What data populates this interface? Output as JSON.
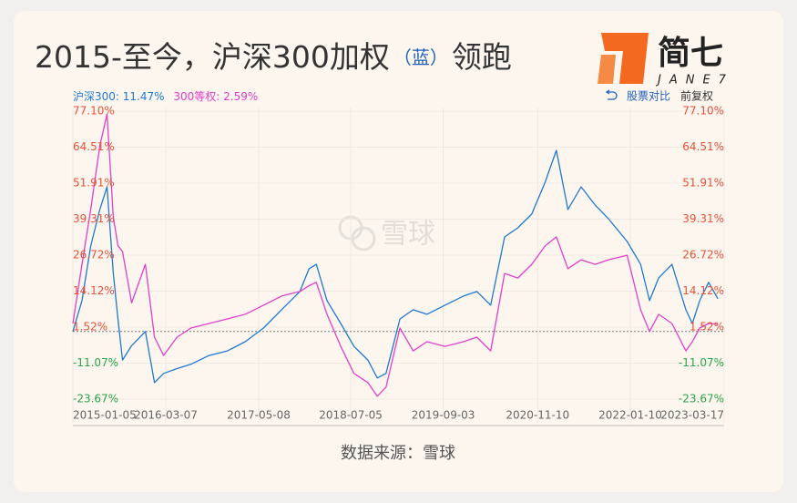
{
  "chart_data": {
    "type": "line",
    "title": "2015-至今，沪深300加权",
    "title_highlight": "（蓝）",
    "title_suffix": "领跑",
    "logo": "简七",
    "logo_sub": "JANE7",
    "watermark": "雪球",
    "source": "数据来源：雪球",
    "compare": "股票对比",
    "adjust": "前复权",
    "x": [
      "2015-01-05",
      "2015-02-16",
      "2015-03-28",
      "2015-05-09",
      "2015-06-11",
      "2015-07-10",
      "2015-07-31",
      "2015-08-21",
      "2015-10-02",
      "2015-12-04",
      "2016-01-15",
      "2016-02-26",
      "2016-04-28",
      "2016-06-30",
      "2016-09-22",
      "2016-12-15",
      "2017-03-07",
      "2017-05-30",
      "2017-08-21",
      "2017-11-13",
      "2017-12-25",
      "2018-01-28",
      "2018-03-18",
      "2018-05-20",
      "2018-07-20",
      "2018-09-22",
      "2018-11-04",
      "2018-12-14",
      "2019-02-16",
      "2019-04-18",
      "2019-06-20",
      "2019-09-11",
      "2019-12-05",
      "2020-02-05",
      "2020-04-08",
      "2020-06-11",
      "2020-08-11",
      "2020-10-14",
      "2020-12-14",
      "2021-02-04",
      "2021-03-29",
      "2021-05-29",
      "2021-08-01",
      "2021-10-01",
      "2021-12-26",
      "2022-02-26",
      "2022-04-08",
      "2022-05-20",
      "2022-07-20",
      "2022-09-22",
      "2022-10-22",
      "2022-11-25",
      "2023-01-05",
      "2023-02-16"
    ],
    "series": [
      {
        "name": "沪深300",
        "color": "#1f78d1",
        "legend_value": {
          "value": 11.47,
          "label": "11.47%"
        },
        "values": [
          0,
          10.8,
          29.9,
          42.7,
          50.6,
          20.3,
          4.4,
          -10,
          -5,
          0,
          -17.9,
          -14.7,
          -13,
          -11.5,
          -8.4,
          -6.8,
          -3.6,
          1.2,
          7.6,
          14,
          21.9,
          23.5,
          10.8,
          2.8,
          -5.2,
          -10,
          -16.3,
          -14.7,
          4.4,
          7.6,
          6,
          9.2,
          12.4,
          14,
          9.2,
          33.1,
          36.3,
          41.1,
          52.2,
          63.4,
          42.7,
          50.6,
          44.3,
          39.5,
          31.5,
          23.5,
          10.8,
          18.7,
          23.5,
          7.6,
          2.8,
          10.8,
          17.2,
          11.47
        ]
      },
      {
        "name": "300等权",
        "color": "#e040c8",
        "legend_value": {
          "value": 2.59,
          "label": "2.59%"
        },
        "values": [
          2.8,
          23.5,
          42.7,
          65,
          76.1,
          40,
          30,
          28,
          10,
          23.5,
          -2,
          -8.4,
          -2,
          1.2,
          2.8,
          4.4,
          6,
          9.2,
          12.4,
          14,
          16,
          17.2,
          6,
          -5.2,
          -14.7,
          -17.9,
          -22.7,
          -19.5,
          1.2,
          -6.8,
          -3.6,
          -5.2,
          -3.6,
          -2,
          -6.8,
          20.3,
          18.7,
          23.5,
          29.9,
          33.1,
          22,
          25.1,
          23.5,
          25.1,
          26.7,
          7.6,
          0,
          6,
          2.8,
          -6.8,
          -3.6,
          1.2,
          2.8,
          2.59
        ]
      }
    ],
    "xlim": [
      "2015-01-05",
      "2023-03-17"
    ],
    "xticks": [
      "2015-01-05",
      "2016-03-07",
      "2017-05-08",
      "2018-07-05",
      "2019-09-03",
      "2020-11-10",
      "2022-01-10",
      "2023-03-17"
    ],
    "ylim": [
      -32.3,
      78.4
    ],
    "yticks": [
      {
        "value": 77.1,
        "label": "77.10%"
      },
      {
        "value": 64.51,
        "label": "64.51%"
      },
      {
        "value": 51.91,
        "label": "51.91%"
      },
      {
        "value": 39.31,
        "label": "39.31%"
      },
      {
        "value": 26.72,
        "label": "26.72%"
      },
      {
        "value": 14.12,
        "label": "14.12%"
      },
      {
        "value": 1.52,
        "label": "1.52%"
      },
      {
        "value": -11.07,
        "label": "-11.07%"
      },
      {
        "value": -23.67,
        "label": "-23.67%"
      }
    ],
    "zero_line": 0,
    "grid": true
  }
}
